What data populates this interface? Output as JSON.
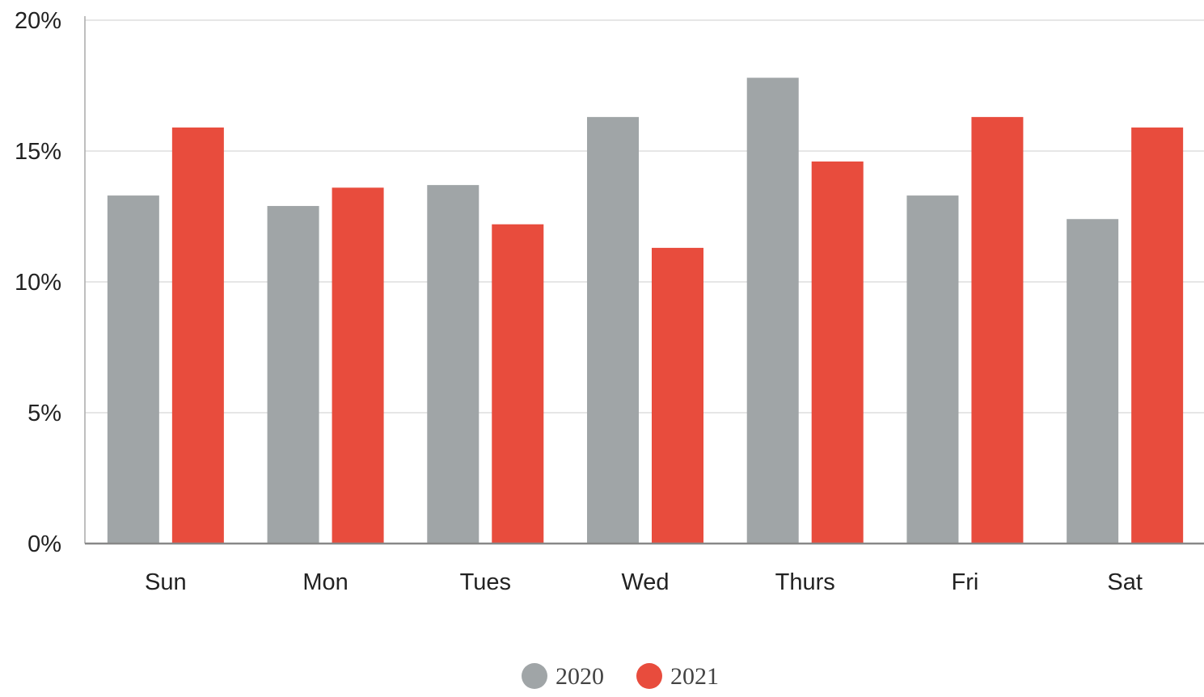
{
  "chart_data": {
    "type": "bar",
    "title": "",
    "xlabel": "",
    "ylabel": "",
    "categories": [
      "Sun",
      "Mon",
      "Tues",
      "Wed",
      "Thurs",
      "Fri",
      "Sat"
    ],
    "series": [
      {
        "name": "2020",
        "color": "#a0a5a7",
        "values": [
          13.3,
          12.9,
          13.7,
          16.3,
          17.8,
          13.3,
          12.4
        ]
      },
      {
        "name": "2021",
        "color": "#e84c3d",
        "values": [
          15.9,
          13.6,
          12.2,
          11.3,
          14.6,
          16.3,
          15.9
        ]
      }
    ],
    "ylim": [
      0,
      20
    ],
    "yticks": [
      0,
      5,
      10,
      15,
      20
    ],
    "ytick_labels": [
      "0%",
      "5%",
      "10%",
      "15%",
      "20%"
    ],
    "grid": true,
    "legend_position": "bottom-center"
  }
}
